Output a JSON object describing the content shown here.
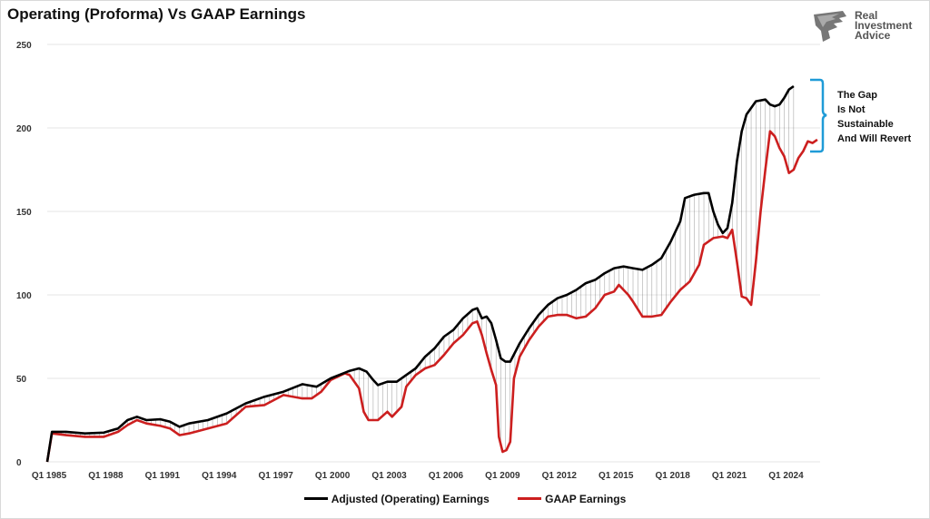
{
  "title": "Operating (Proforma) Vs GAAP Earnings",
  "brand": {
    "name_lines": [
      "Real",
      "Investment",
      "Advice"
    ]
  },
  "annotation": {
    "lines": [
      "The Gap",
      "Is Not",
      "Sustainable",
      "And Will Revert"
    ],
    "color": "#1f9bd7"
  },
  "chart_data": {
    "type": "line",
    "title": "Operating (Proforma) Vs GAAP Earnings",
    "ylim": [
      0,
      250
    ],
    "yticks": [
      0,
      50,
      100,
      150,
      200,
      250
    ],
    "grid": true,
    "legend_position": "bottom-center",
    "xtick_labels": [
      "Q1 1985",
      "Q1 1988",
      "Q1 1991",
      "Q1 1994",
      "Q1 1997",
      "Q1 2000",
      "Q1 2003",
      "Q1 2006",
      "Q1 2009",
      "Q1 2012",
      "Q1 2015",
      "Q1 2018",
      "Q1 2021",
      "Q1 2024"
    ],
    "series": [
      {
        "name": "Adjusted (Operating) Earnings",
        "color": "#000000",
        "points": [
          [
            1985.0,
            0
          ],
          [
            1985.25,
            18
          ],
          [
            1986.0,
            18
          ],
          [
            1987.0,
            17
          ],
          [
            1988.0,
            17.5
          ],
          [
            1988.75,
            20
          ],
          [
            1989.25,
            25
          ],
          [
            1989.75,
            27
          ],
          [
            1990.25,
            25
          ],
          [
            1991.0,
            25.5
          ],
          [
            1991.5,
            24
          ],
          [
            1992.0,
            21
          ],
          [
            1992.5,
            23
          ],
          [
            1993.5,
            25
          ],
          [
            1994.5,
            29
          ],
          [
            1995.5,
            35
          ],
          [
            1996.5,
            39
          ],
          [
            1997.5,
            42
          ],
          [
            1998.5,
            46.5
          ],
          [
            1998.75,
            46
          ],
          [
            1999.25,
            45
          ],
          [
            2000.0,
            50
          ],
          [
            2001.0,
            54.5
          ],
          [
            2001.5,
            56
          ],
          [
            2001.9,
            54
          ],
          [
            2002.25,
            49
          ],
          [
            2002.5,
            46
          ],
          [
            2003.0,
            48
          ],
          [
            2003.5,
            48
          ],
          [
            2004.0,
            52
          ],
          [
            2004.5,
            56
          ],
          [
            2005.0,
            63
          ],
          [
            2005.5,
            68
          ],
          [
            2006.0,
            75
          ],
          [
            2006.5,
            79
          ],
          [
            2007.0,
            86
          ],
          [
            2007.5,
            91
          ],
          [
            2007.75,
            92
          ],
          [
            2008.0,
            86
          ],
          [
            2008.25,
            87
          ],
          [
            2008.5,
            83
          ],
          [
            2008.75,
            73
          ],
          [
            2009.0,
            62
          ],
          [
            2009.25,
            60
          ],
          [
            2009.5,
            60
          ],
          [
            2010.0,
            71
          ],
          [
            2010.5,
            80
          ],
          [
            2011.0,
            88
          ],
          [
            2011.5,
            94
          ],
          [
            2012.0,
            98
          ],
          [
            2012.5,
            100
          ],
          [
            2013.0,
            103
          ],
          [
            2013.5,
            107
          ],
          [
            2014.0,
            109
          ],
          [
            2014.5,
            113
          ],
          [
            2015.0,
            116
          ],
          [
            2015.5,
            117
          ],
          [
            2016.0,
            116
          ],
          [
            2016.5,
            115
          ],
          [
            2017.0,
            118
          ],
          [
            2017.5,
            122
          ],
          [
            2018.0,
            132
          ],
          [
            2018.5,
            144
          ],
          [
            2018.75,
            158
          ],
          [
            2019.25,
            160
          ],
          [
            2019.75,
            161
          ],
          [
            2020.0,
            161
          ],
          [
            2020.25,
            150
          ],
          [
            2020.5,
            142
          ],
          [
            2020.75,
            137
          ],
          [
            2021.0,
            140
          ],
          [
            2021.25,
            155
          ],
          [
            2021.5,
            180
          ],
          [
            2021.75,
            198
          ],
          [
            2022.0,
            208
          ],
          [
            2022.5,
            216
          ],
          [
            2023.0,
            217
          ],
          [
            2023.25,
            214
          ],
          [
            2023.5,
            213
          ],
          [
            2023.75,
            214
          ],
          [
            2024.0,
            218
          ],
          [
            2024.25,
            223
          ],
          [
            2024.5,
            225
          ]
        ]
      },
      {
        "name": "GAAP Earnings",
        "color": "#cc1f1f",
        "points": [
          [
            1985.0,
            0
          ],
          [
            1985.25,
            17
          ],
          [
            1986.0,
            16
          ],
          [
            1987.0,
            15
          ],
          [
            1988.0,
            15
          ],
          [
            1988.75,
            18
          ],
          [
            1989.25,
            22
          ],
          [
            1989.75,
            25
          ],
          [
            1990.25,
            23
          ],
          [
            1991.0,
            21.5
          ],
          [
            1991.5,
            20
          ],
          [
            1992.0,
            16
          ],
          [
            1992.5,
            17
          ],
          [
            1993.5,
            20
          ],
          [
            1994.5,
            23
          ],
          [
            1995.5,
            33
          ],
          [
            1996.5,
            34
          ],
          [
            1997.5,
            40
          ],
          [
            1998.5,
            38
          ],
          [
            1999.0,
            38
          ],
          [
            1999.5,
            42
          ],
          [
            2000.0,
            49
          ],
          [
            2000.75,
            53
          ],
          [
            2001.0,
            52
          ],
          [
            2001.5,
            44
          ],
          [
            2001.75,
            30
          ],
          [
            2002.0,
            25
          ],
          [
            2002.5,
            25
          ],
          [
            2003.0,
            30
          ],
          [
            2003.25,
            27
          ],
          [
            2003.75,
            33
          ],
          [
            2004.0,
            45
          ],
          [
            2004.5,
            52
          ],
          [
            2005.0,
            56
          ],
          [
            2005.5,
            58
          ],
          [
            2006.0,
            64
          ],
          [
            2006.5,
            71
          ],
          [
            2007.0,
            76
          ],
          [
            2007.5,
            83
          ],
          [
            2007.75,
            84
          ],
          [
            2008.0,
            76
          ],
          [
            2008.25,
            65
          ],
          [
            2008.5,
            55
          ],
          [
            2008.75,
            46
          ],
          [
            2008.9,
            15
          ],
          [
            2009.1,
            6
          ],
          [
            2009.3,
            7
          ],
          [
            2009.5,
            12
          ],
          [
            2009.7,
            50
          ],
          [
            2010.0,
            63
          ],
          [
            2010.5,
            73
          ],
          [
            2011.0,
            81
          ],
          [
            2011.5,
            87
          ],
          [
            2012.0,
            88
          ],
          [
            2012.5,
            88
          ],
          [
            2013.0,
            86
          ],
          [
            2013.5,
            87
          ],
          [
            2014.0,
            92
          ],
          [
            2014.5,
            100
          ],
          [
            2015.0,
            102
          ],
          [
            2015.25,
            106
          ],
          [
            2015.75,
            100
          ],
          [
            2016.0,
            96
          ],
          [
            2016.5,
            87
          ],
          [
            2017.0,
            87
          ],
          [
            2017.5,
            88
          ],
          [
            2018.0,
            96
          ],
          [
            2018.5,
            103
          ],
          [
            2019.0,
            108
          ],
          [
            2019.5,
            118
          ],
          [
            2019.75,
            130
          ],
          [
            2020.25,
            134
          ],
          [
            2020.75,
            135
          ],
          [
            2021.0,
            134
          ],
          [
            2021.25,
            139
          ],
          [
            2021.5,
            120
          ],
          [
            2021.75,
            99
          ],
          [
            2022.0,
            98
          ],
          [
            2022.25,
            94
          ],
          [
            2022.5,
            120
          ],
          [
            2022.75,
            150
          ],
          [
            2023.0,
            175
          ],
          [
            2023.25,
            198
          ],
          [
            2023.5,
            195
          ],
          [
            2023.75,
            188
          ],
          [
            2024.0,
            183
          ],
          [
            2024.25,
            173
          ],
          [
            2024.5,
            175
          ],
          [
            2024.75,
            182
          ],
          [
            2025.0,
            186
          ],
          [
            2025.25,
            192
          ],
          [
            2025.5,
            191
          ],
          [
            2025.75,
            193
          ]
        ]
      }
    ]
  }
}
